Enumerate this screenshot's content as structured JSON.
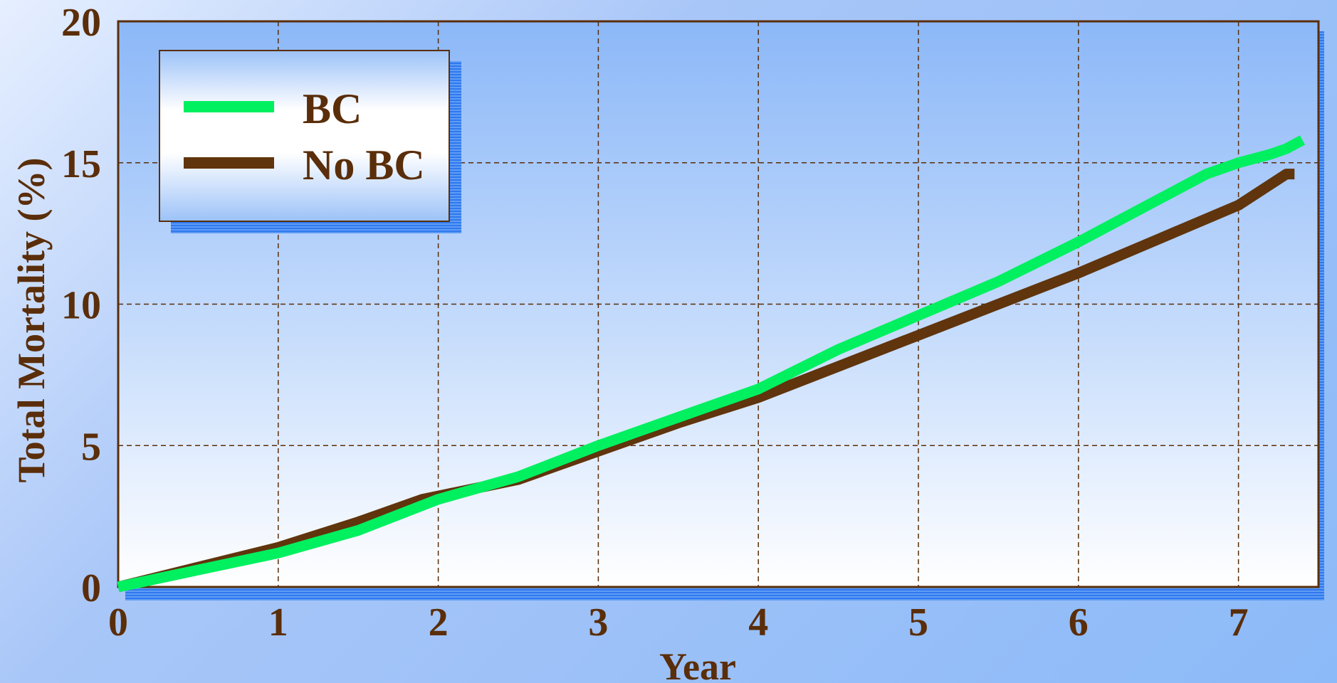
{
  "chart_data": {
    "type": "line",
    "title": "",
    "xlabel": "Year",
    "ylabel": "Total Mortality (%)",
    "xlim": [
      0,
      7.5
    ],
    "ylim": [
      0,
      20
    ],
    "x_ticks": [
      "0",
      "1",
      "2",
      "3",
      "4",
      "5",
      "6",
      "7"
    ],
    "y_ticks": [
      "0",
      "5",
      "10",
      "15",
      "20"
    ],
    "grid": true,
    "legend_position": "top-left",
    "series": [
      {
        "name": "BC",
        "color": "#00f060",
        "x": [
          0,
          0.5,
          1.0,
          1.5,
          2.0,
          2.5,
          3.0,
          3.5,
          4.0,
          4.5,
          5.0,
          5.5,
          6.0,
          6.5,
          6.8,
          7.0,
          7.2,
          7.3,
          7.4
        ],
        "y": [
          0,
          0.6,
          1.2,
          2.0,
          3.1,
          3.9,
          5.0,
          6.0,
          7.0,
          8.4,
          9.6,
          10.8,
          12.2,
          13.7,
          14.6,
          15.0,
          15.3,
          15.5,
          15.8
        ]
      },
      {
        "name": "No BC",
        "color": "#60340c",
        "x": [
          0,
          0.5,
          1.0,
          1.5,
          1.9,
          2.5,
          3.0,
          3.5,
          4.0,
          4.5,
          5.0,
          5.5,
          6.0,
          6.5,
          7.0,
          7.3,
          7.35
        ],
        "y": [
          0,
          0.7,
          1.4,
          2.3,
          3.1,
          3.8,
          4.8,
          5.8,
          6.7,
          7.8,
          8.9,
          10.0,
          11.1,
          12.3,
          13.5,
          14.6,
          14.6
        ]
      }
    ]
  }
}
